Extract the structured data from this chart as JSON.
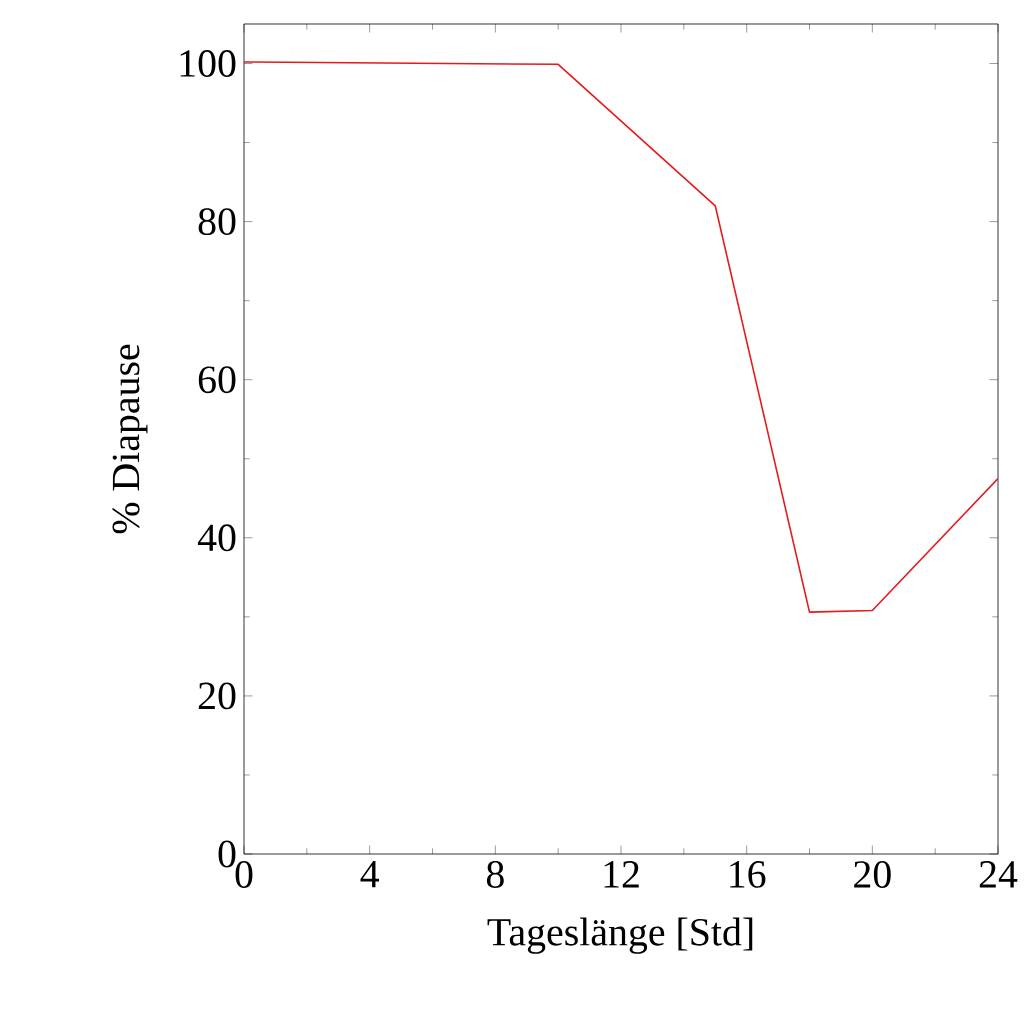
{
  "chart_data": {
    "type": "line",
    "xlabel": "Tageslänge [Std]",
    "ylabel": "% Diapause",
    "x": [
      0,
      10,
      15,
      18,
      20,
      24
    ],
    "series": [
      {
        "color": "#e41a1c",
        "values": [
          100.2,
          99.9,
          82.0,
          30.6,
          30.8,
          47.5
        ]
      }
    ],
    "xlim": [
      0,
      24
    ],
    "ylim": [
      0,
      105
    ],
    "xticks": [
      0,
      4,
      8,
      12,
      16,
      20,
      24
    ],
    "yticks": [
      0,
      20,
      40,
      60,
      80,
      100
    ],
    "grid": false,
    "marker": "none",
    "line_style": "solid"
  }
}
